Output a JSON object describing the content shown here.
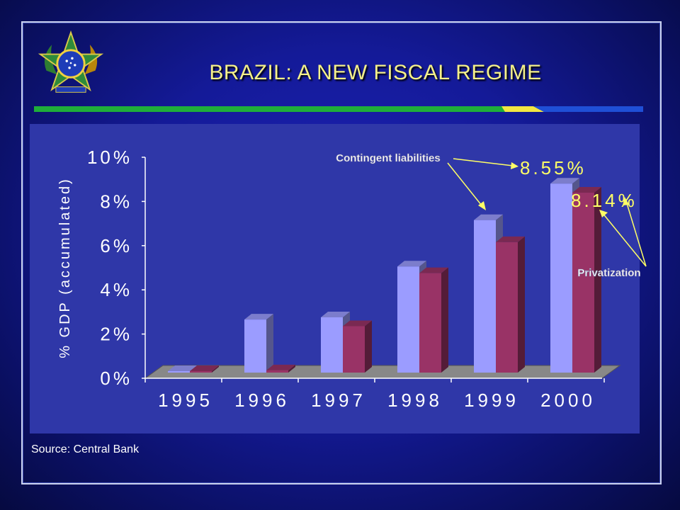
{
  "slide": {
    "title": "BRAZIL: A NEW FISCAL REGIME",
    "source": "Source: Central Bank"
  },
  "colors": {
    "background": "#141a98",
    "title": "#f4f08a",
    "series_contingent": "#9b9cff",
    "series_privatization": "#993366",
    "annotation": "#ffff66",
    "stripe_green": "#1fae3a",
    "stripe_yellow": "#f2e641",
    "stripe_blue": "#1f4fd6"
  },
  "chart_data": {
    "type": "bar",
    "ylabel": "% GDP (accumulated)",
    "categories": [
      "1995",
      "1996",
      "1997",
      "1998",
      "1999",
      "2000"
    ],
    "ylim": [
      0,
      10
    ],
    "yticks": [
      "0%",
      "2%",
      "4%",
      "6%",
      "8%",
      "10%"
    ],
    "grid": false,
    "series": [
      {
        "name": "Contingent liabilities",
        "values": [
          0.0,
          2.4,
          2.5,
          4.8,
          6.9,
          8.55
        ]
      },
      {
        "name": "Privatization",
        "values": [
          0.0,
          0.1,
          2.1,
          4.5,
          5.9,
          8.14
        ]
      }
    ],
    "annotations": [
      {
        "label": "Contingent liabilities",
        "value": "8.55%"
      },
      {
        "label": "Privatization",
        "value": "8.14%"
      }
    ]
  }
}
